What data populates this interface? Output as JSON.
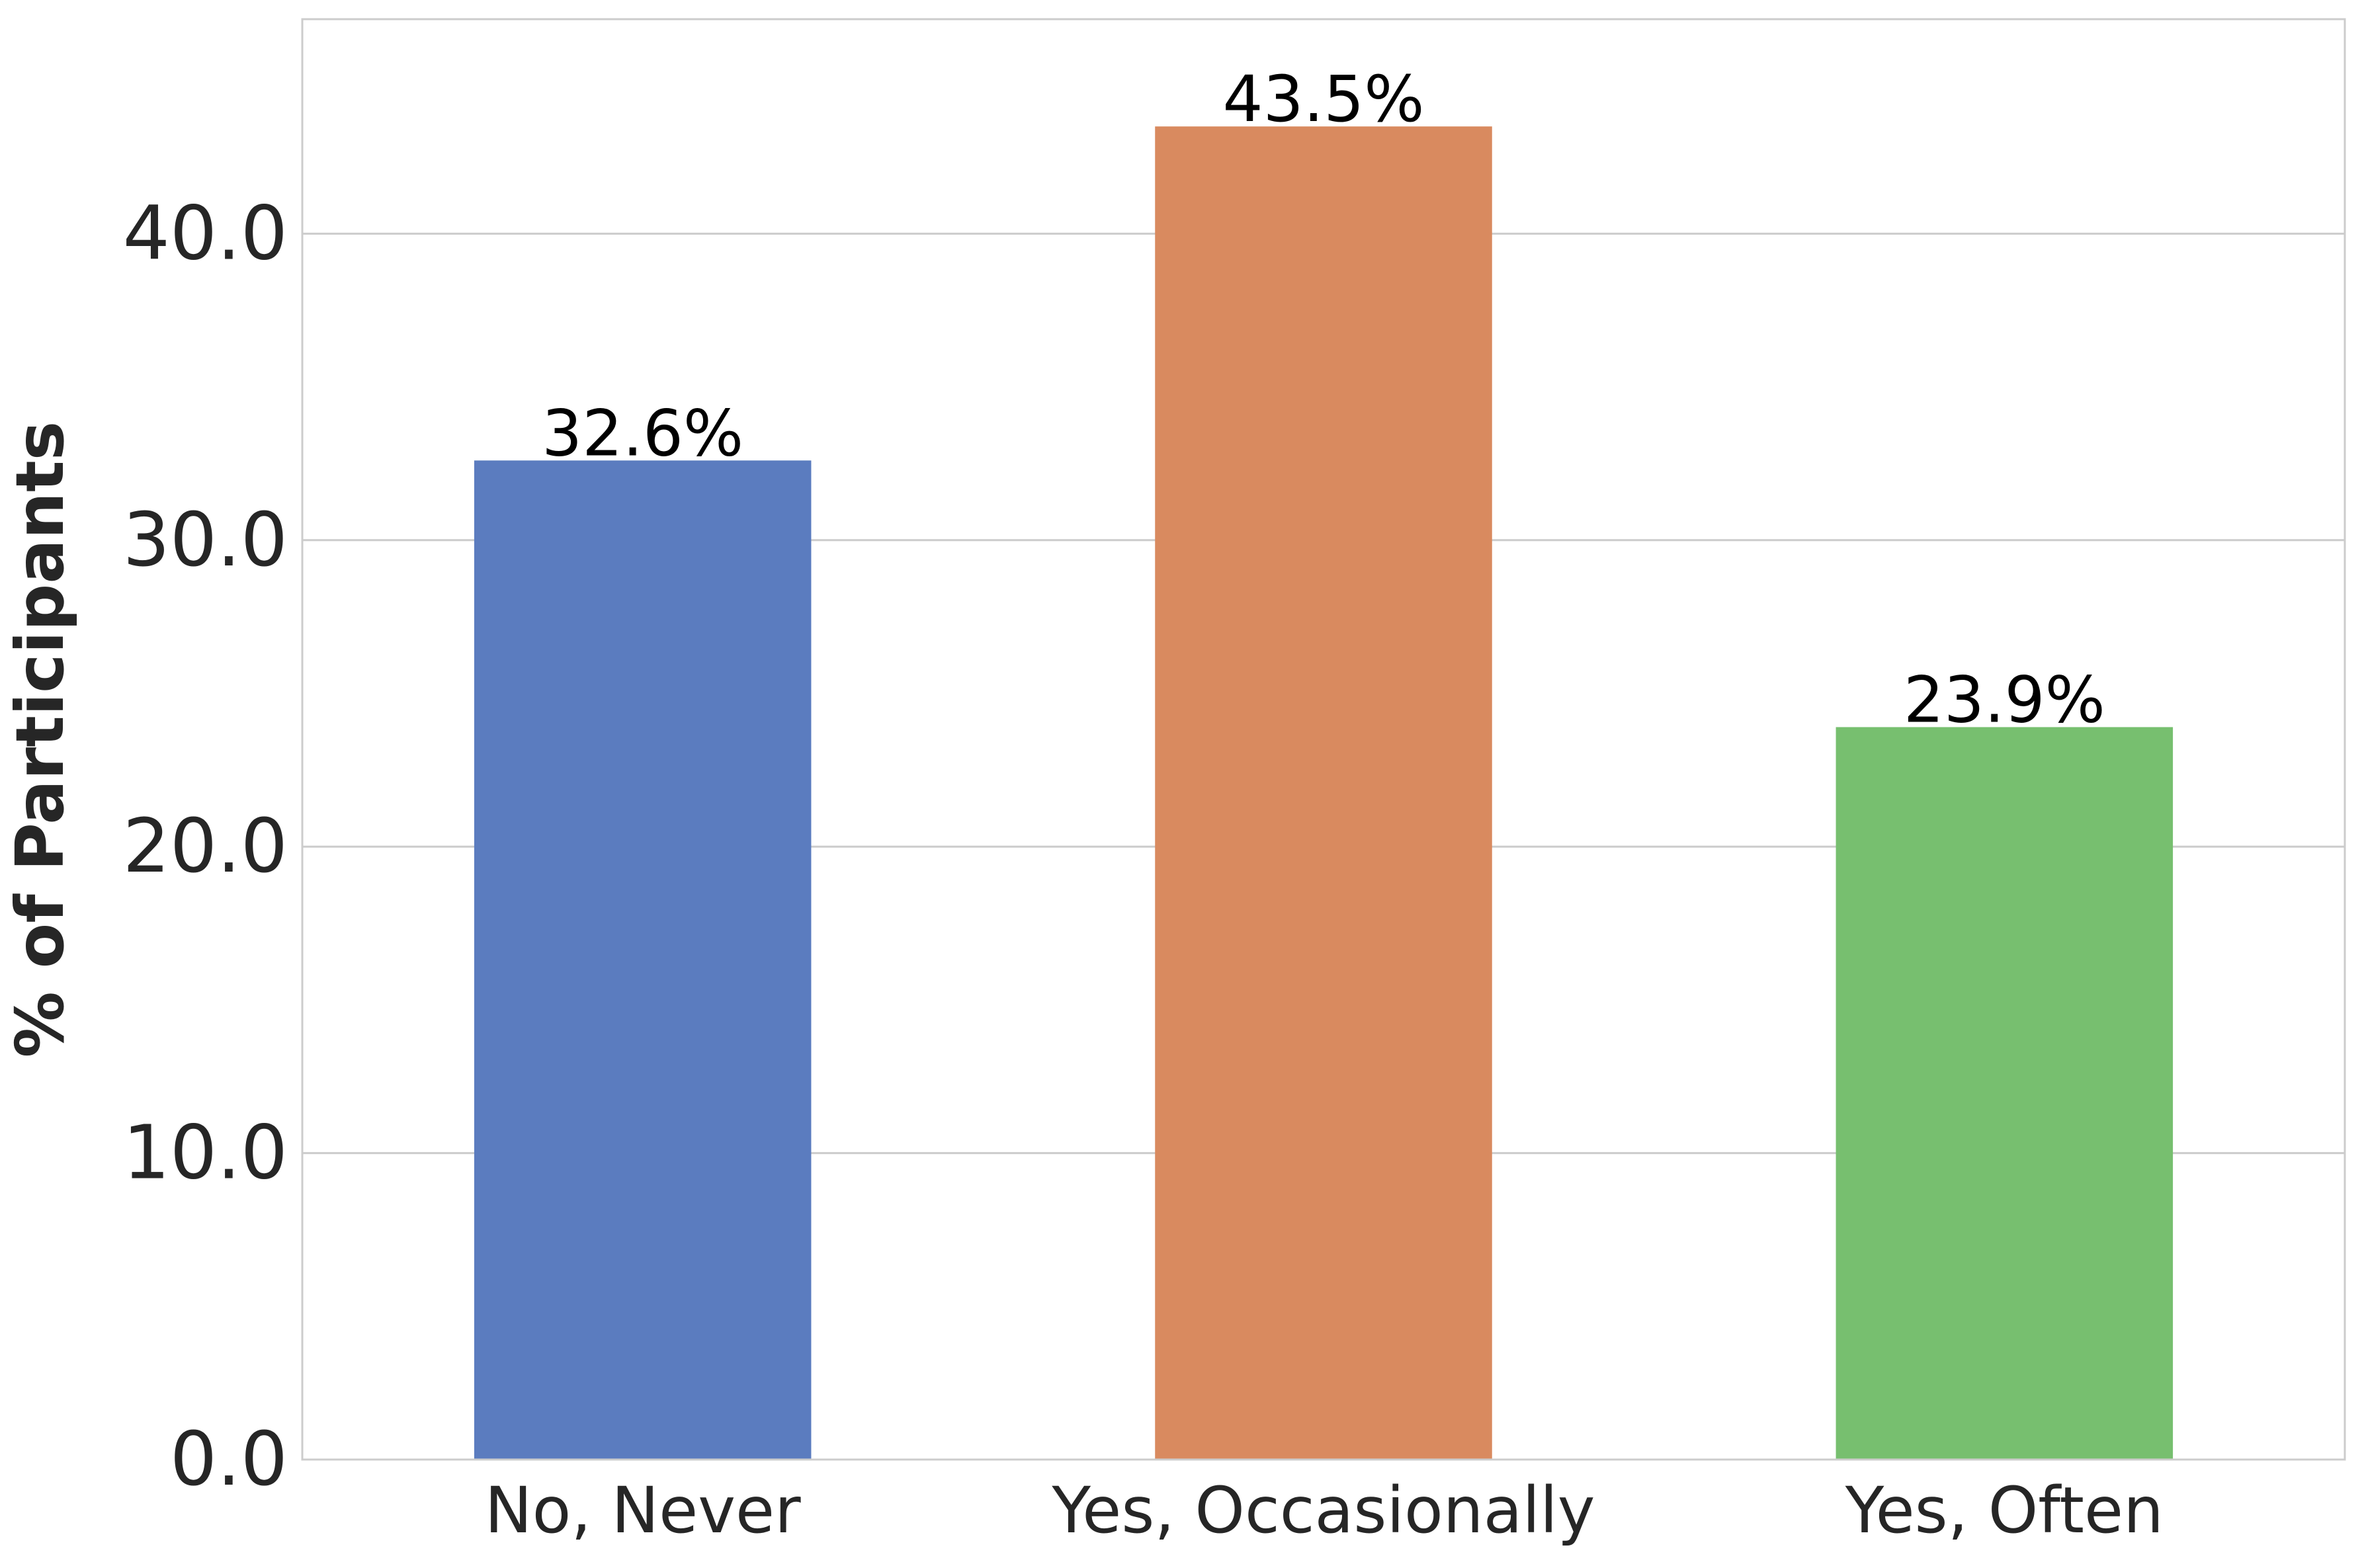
{
  "chart_data": {
    "type": "bar",
    "categories": [
      "No, Never",
      "Yes, Occasionally",
      "Yes, Often"
    ],
    "values": [
      32.6,
      43.5,
      23.9
    ],
    "value_labels": [
      "32.6%",
      "43.5%",
      "23.9%"
    ],
    "colors": [
      "#5b7cbf",
      "#d98a5f",
      "#77bf6f"
    ],
    "title": "",
    "xlabel": "",
    "ylabel": "% of Participants",
    "ylim": [
      0,
      47
    ],
    "yticks": [
      0,
      10,
      20,
      30,
      40
    ],
    "ytick_labels": [
      "0.0",
      "10.0",
      "20.0",
      "30.0",
      "40.0"
    ],
    "grid": "horizontal",
    "legend": "none"
  }
}
